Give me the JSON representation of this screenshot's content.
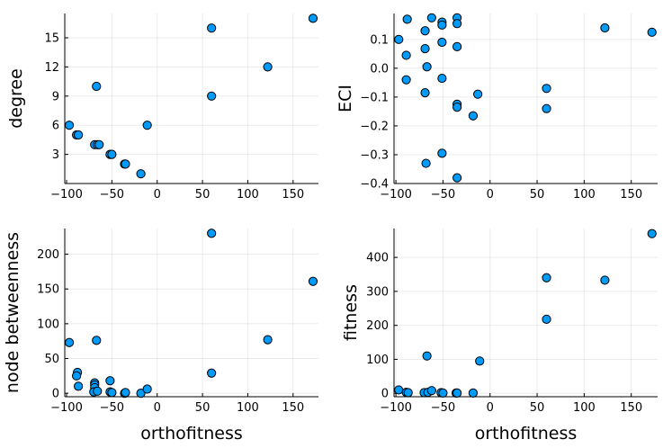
{
  "chart_data": [
    {
      "type": "scatter",
      "title": "",
      "xlabel": "",
      "ylabel": "degree",
      "xlim": [
        -102,
        178
      ],
      "ylim": [
        0,
        17.5
      ],
      "xticks": [
        -100,
        -50,
        0,
        50,
        100,
        150
      ],
      "xtick_labels": [
        "−100",
        "−50",
        "0",
        "50",
        "100",
        "150"
      ],
      "yticks": [
        3,
        6,
        9,
        12,
        15
      ],
      "ytick_labels": [
        "3",
        "6",
        "9",
        "12",
        "15"
      ],
      "grid": true,
      "color": "#009af9",
      "points": [
        {
          "x": -97,
          "y": 6
        },
        {
          "x": -89,
          "y": 5
        },
        {
          "x": -87,
          "y": 5
        },
        {
          "x": -69,
          "y": 4
        },
        {
          "x": -66,
          "y": 4
        },
        {
          "x": -64,
          "y": 4
        },
        {
          "x": -67,
          "y": 10
        },
        {
          "x": -52,
          "y": 3
        },
        {
          "x": -50,
          "y": 3
        },
        {
          "x": -36,
          "y": 2
        },
        {
          "x": -35,
          "y": 2
        },
        {
          "x": -18,
          "y": 1
        },
        {
          "x": -11,
          "y": 6
        },
        {
          "x": 60,
          "y": 16
        },
        {
          "x": 60,
          "y": 9
        },
        {
          "x": 122,
          "y": 12
        },
        {
          "x": 172,
          "y": 17
        }
      ]
    },
    {
      "type": "scatter",
      "title": "",
      "xlabel": "",
      "ylabel": "ECI",
      "xlim": [
        -102,
        178
      ],
      "ylim": [
        -0.4,
        0.19
      ],
      "xticks": [
        -100,
        -50,
        0,
        50,
        100,
        150
      ],
      "xtick_labels": [
        "−100",
        "−50",
        "0",
        "50",
        "100",
        "150"
      ],
      "yticks": [
        -0.4,
        -0.3,
        -0.2,
        -0.1,
        0.0,
        0.1
      ],
      "ytick_labels": [
        "−0.4",
        "−0.3",
        "−0.2",
        "−0.1",
        "0.0",
        "0.1"
      ],
      "grid": true,
      "color": "#009af9",
      "points": [
        {
          "x": -97,
          "y": 0.1
        },
        {
          "x": -88,
          "y": 0.17
        },
        {
          "x": -89,
          "y": 0.045
        },
        {
          "x": -89,
          "y": -0.04
        },
        {
          "x": -69,
          "y": 0.13
        },
        {
          "x": -69,
          "y": 0.068
        },
        {
          "x": -67,
          "y": 0.005
        },
        {
          "x": -69,
          "y": -0.085
        },
        {
          "x": -68,
          "y": -0.33
        },
        {
          "x": -62,
          "y": 0.175
        },
        {
          "x": -51,
          "y": 0.16
        },
        {
          "x": -51,
          "y": 0.15
        },
        {
          "x": -51,
          "y": 0.09
        },
        {
          "x": -51,
          "y": -0.035
        },
        {
          "x": -51,
          "y": -0.295
        },
        {
          "x": -35,
          "y": 0.175
        },
        {
          "x": -35,
          "y": 0.155
        },
        {
          "x": -35,
          "y": 0.075
        },
        {
          "x": -35,
          "y": -0.125
        },
        {
          "x": -35,
          "y": -0.135
        },
        {
          "x": -35,
          "y": -0.38
        },
        {
          "x": -13,
          "y": -0.09
        },
        {
          "x": -18,
          "y": -0.165
        },
        {
          "x": 60,
          "y": -0.07
        },
        {
          "x": 60,
          "y": -0.14
        },
        {
          "x": 122,
          "y": 0.14
        },
        {
          "x": 172,
          "y": 0.125
        }
      ]
    },
    {
      "type": "scatter",
      "title": "",
      "xlabel": "orthofitness",
      "ylabel": "node betweenness",
      "xlim": [
        -102,
        178
      ],
      "ylim": [
        -5,
        237
      ],
      "xticks": [
        -100,
        -50,
        0,
        50,
        100,
        150
      ],
      "xtick_labels": [
        "−100",
        "−50",
        "0",
        "50",
        "100",
        "150"
      ],
      "yticks": [
        0,
        50,
        100,
        150,
        200
      ],
      "ytick_labels": [
        "0",
        "50",
        "100",
        "150",
        "200"
      ],
      "grid": true,
      "color": "#009af9",
      "points": [
        {
          "x": -97,
          "y": 73
        },
        {
          "x": -88,
          "y": 30
        },
        {
          "x": -89,
          "y": 25
        },
        {
          "x": -87,
          "y": 10
        },
        {
          "x": -69,
          "y": 15
        },
        {
          "x": -69,
          "y": 12
        },
        {
          "x": -69,
          "y": 8
        },
        {
          "x": -70,
          "y": 2
        },
        {
          "x": -66,
          "y": 3
        },
        {
          "x": -67,
          "y": 76
        },
        {
          "x": -52,
          "y": 18
        },
        {
          "x": -52,
          "y": 2
        },
        {
          "x": -50,
          "y": 1
        },
        {
          "x": -36,
          "y": 0
        },
        {
          "x": -35,
          "y": 1
        },
        {
          "x": -18,
          "y": 0
        },
        {
          "x": -11,
          "y": 6
        },
        {
          "x": 60,
          "y": 230
        },
        {
          "x": 60,
          "y": 29
        },
        {
          "x": 122,
          "y": 77
        },
        {
          "x": 172,
          "y": 161
        }
      ]
    },
    {
      "type": "scatter",
      "title": "",
      "xlabel": "orthofitness",
      "ylabel": "fitness",
      "xlim": [
        -102,
        178
      ],
      "ylim": [
        -10,
        485
      ],
      "xticks": [
        -100,
        -50,
        0,
        50,
        100,
        150
      ],
      "xtick_labels": [
        "−100",
        "−50",
        "0",
        "50",
        "100",
        "150"
      ],
      "yticks": [
        0,
        100,
        200,
        300,
        400
      ],
      "ytick_labels": [
        "0",
        "100",
        "200",
        "300",
        "400"
      ],
      "grid": true,
      "color": "#009af9",
      "points": [
        {
          "x": -97,
          "y": 10
        },
        {
          "x": -89,
          "y": 3
        },
        {
          "x": -87,
          "y": 2
        },
        {
          "x": -70,
          "y": 2
        },
        {
          "x": -66,
          "y": 3
        },
        {
          "x": -62,
          "y": 8
        },
        {
          "x": -67,
          "y": 110
        },
        {
          "x": -52,
          "y": 2
        },
        {
          "x": -50,
          "y": 1
        },
        {
          "x": -36,
          "y": 1
        },
        {
          "x": -35,
          "y": 1
        },
        {
          "x": -18,
          "y": 1
        },
        {
          "x": -11,
          "y": 95
        },
        {
          "x": 60,
          "y": 340
        },
        {
          "x": 60,
          "y": 218
        },
        {
          "x": 122,
          "y": 333
        },
        {
          "x": 172,
          "y": 470
        }
      ]
    }
  ]
}
